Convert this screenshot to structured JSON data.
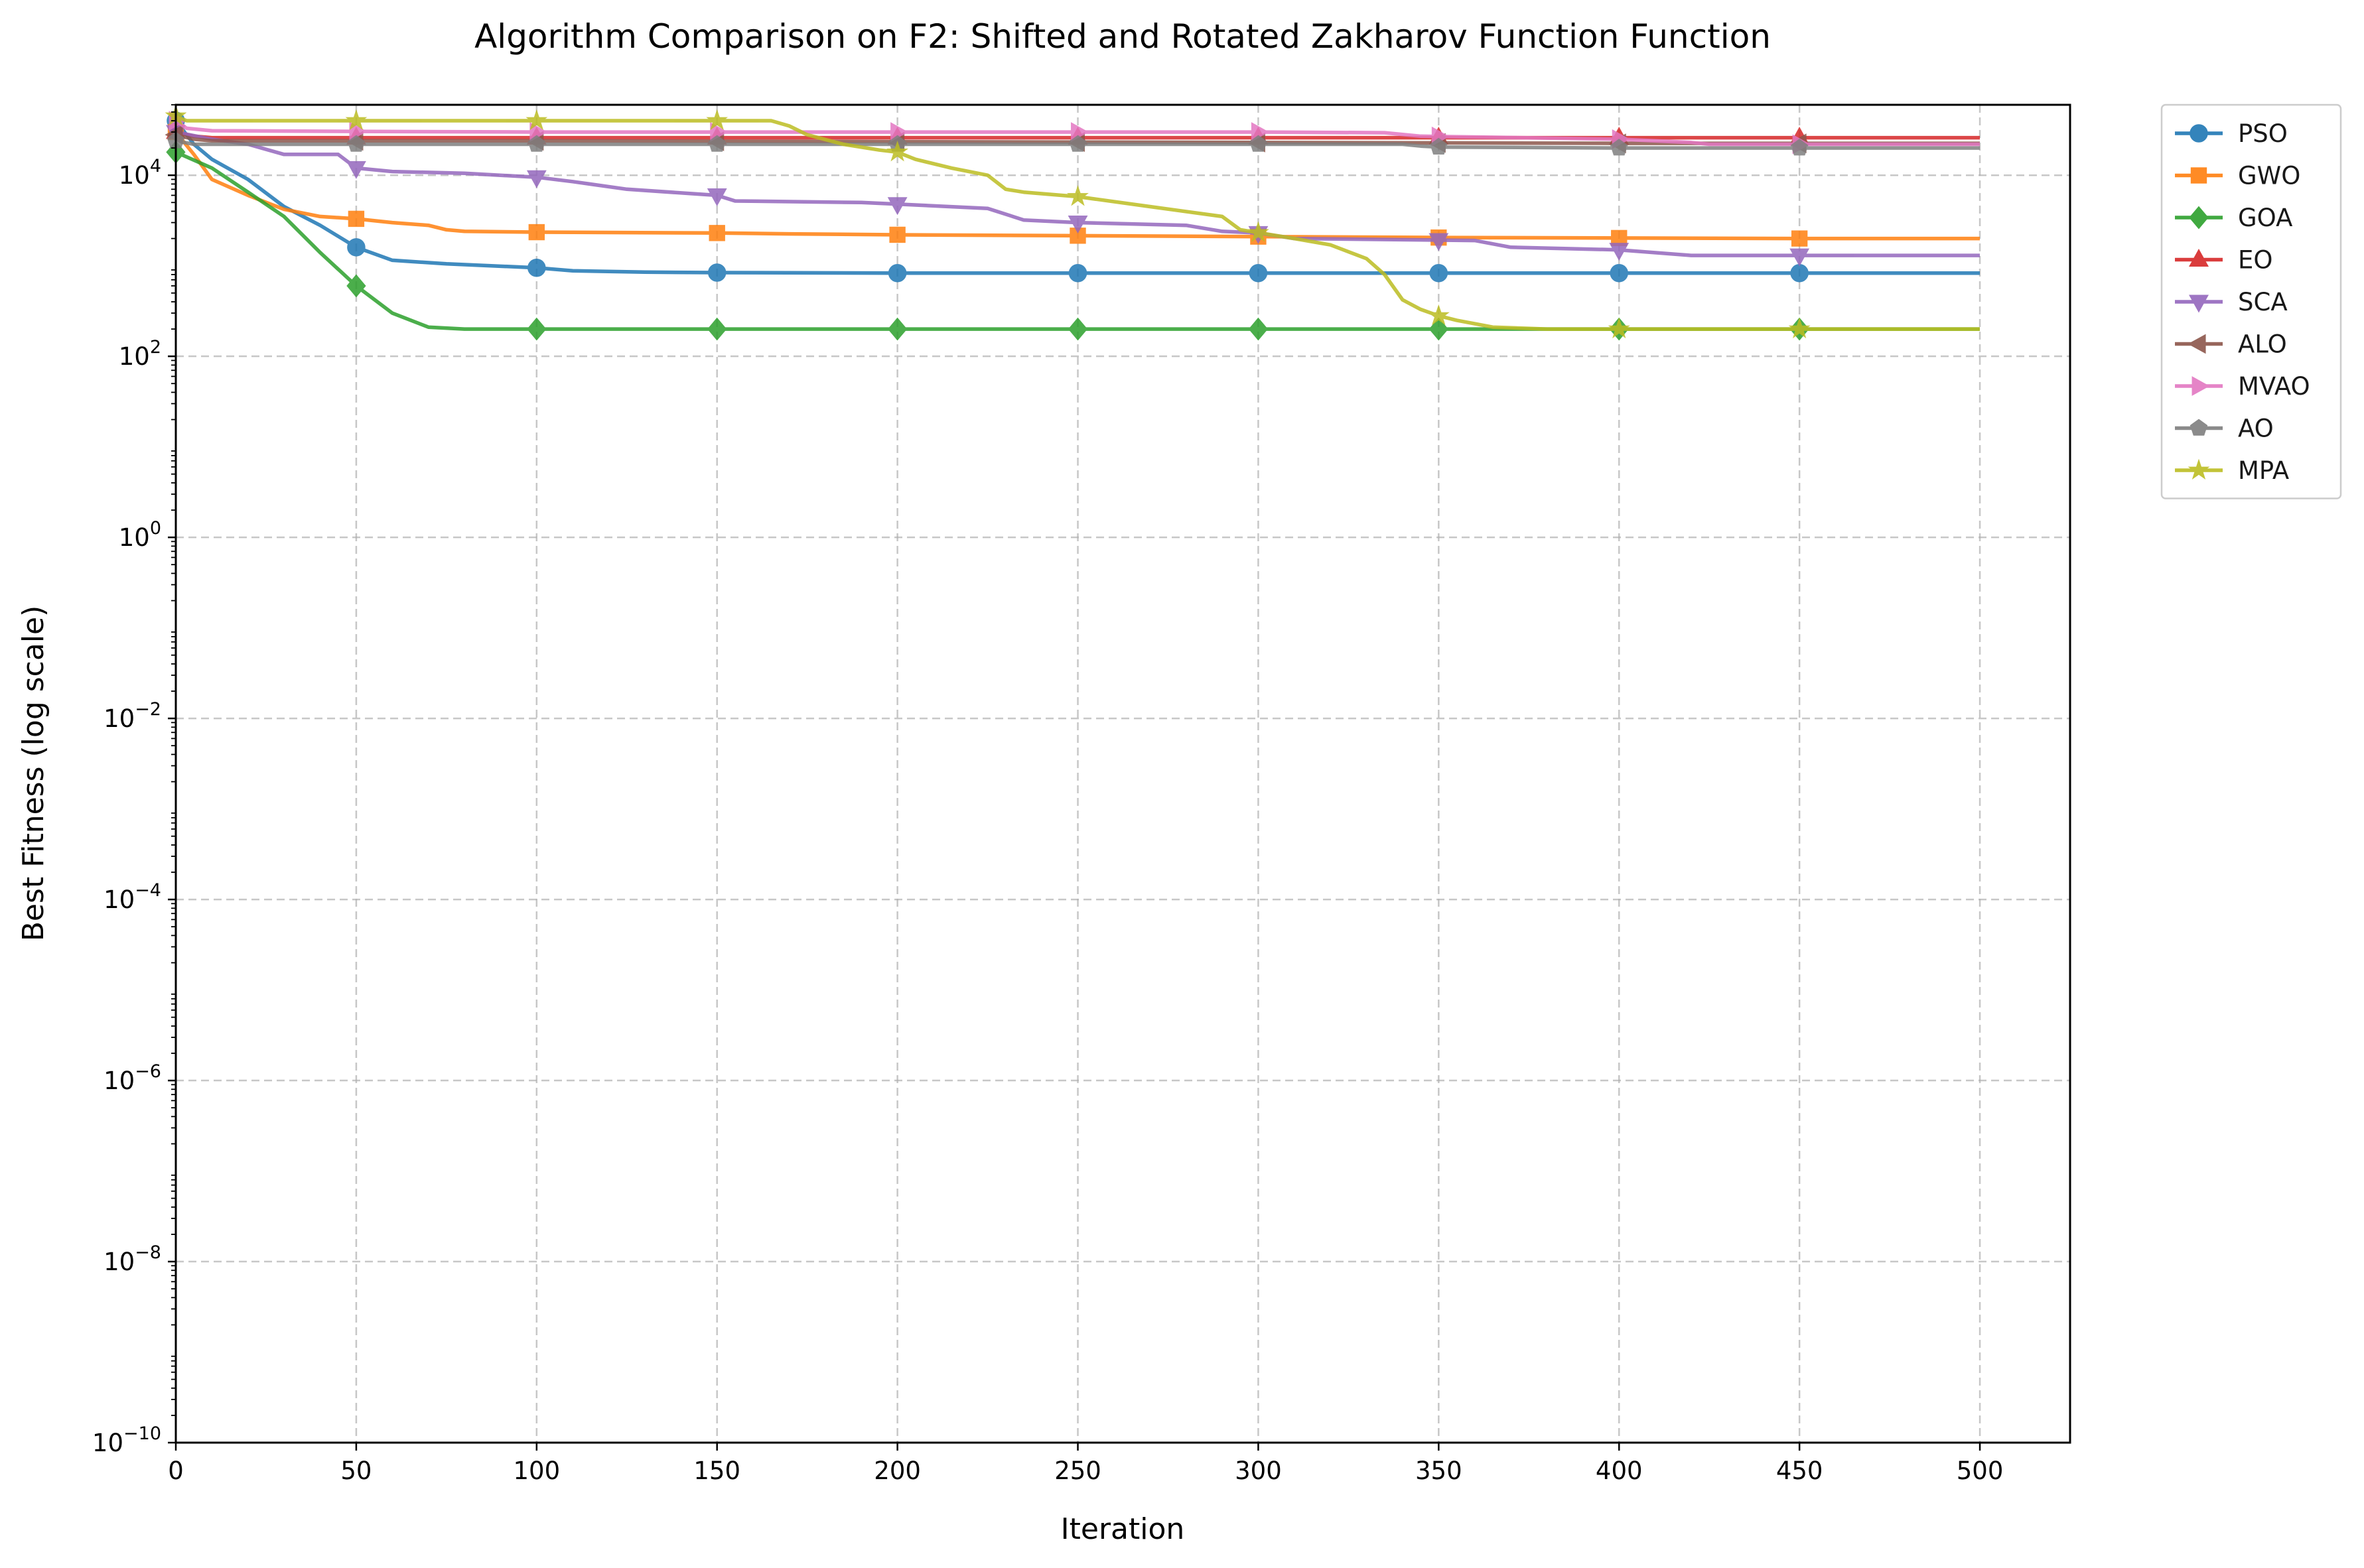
{
  "chart_data": {
    "type": "line",
    "title": "Algorithm Comparison on F2: Shifted and Rotated Zakharov Function Function",
    "xlabel": "Iteration",
    "ylabel": "Best Fitness (log scale)",
    "xlim": [
      0,
      525
    ],
    "ylim": [
      1e-10,
      60000
    ],
    "yscale": "log",
    "grid": true,
    "legend_position": "outside-top-right",
    "xticks": [
      "0",
      "50",
      "100",
      "150",
      "200",
      "250",
      "300",
      "350",
      "400",
      "450",
      "500"
    ],
    "yticks": [
      {
        "base": "10",
        "exp": "4"
      },
      {
        "base": "10",
        "exp": "2"
      },
      {
        "base": "10",
        "exp": "0"
      },
      {
        "base": "10",
        "exp": "−2"
      },
      {
        "base": "10",
        "exp": "−4"
      },
      {
        "base": "10",
        "exp": "−6"
      },
      {
        "base": "10",
        "exp": "−8"
      },
      {
        "base": "10",
        "exp": "−10"
      }
    ],
    "series": [
      {
        "name": "PSO",
        "color": "#1f77b4",
        "marker": "circle",
        "x": [
          0,
          5,
          10,
          20,
          30,
          40,
          50,
          60,
          75,
          100,
          110,
          130,
          150,
          200,
          300,
          400,
          500
        ],
        "y": [
          40000,
          22000,
          15000,
          9000,
          4500,
          2800,
          1600,
          1150,
          1050,
          950,
          880,
          850,
          840,
          830,
          830,
          830,
          830
        ]
      },
      {
        "name": "GWO",
        "color": "#ff7f0e",
        "marker": "square",
        "x": [
          0,
          5,
          10,
          20,
          30,
          40,
          50,
          60,
          70,
          75,
          80,
          100,
          150,
          170,
          200,
          300,
          350,
          450,
          500
        ],
        "y": [
          30000,
          17000,
          9000,
          6000,
          4200,
          3500,
          3300,
          3000,
          2800,
          2500,
          2400,
          2350,
          2300,
          2250,
          2200,
          2100,
          2050,
          2000,
          2000
        ]
      },
      {
        "name": "GOA",
        "color": "#2ca02c",
        "marker": "diamond",
        "x": [
          0,
          10,
          20,
          30,
          40,
          50,
          60,
          70,
          80,
          100,
          150,
          300,
          450,
          500
        ],
        "y": [
          18000,
          12000,
          6500,
          3500,
          1400,
          600,
          300,
          210,
          200,
          200,
          200,
          200,
          200,
          200
        ]
      },
      {
        "name": "EO",
        "color": "#d62728",
        "marker": "triangle-up",
        "x": [
          0,
          5,
          10,
          50,
          100,
          150,
          200,
          250,
          300,
          350,
          400,
          450,
          500
        ],
        "y": [
          30000,
          27000,
          26000,
          26000,
          26000,
          26000,
          26000,
          26000,
          26000,
          26000,
          26000,
          26000,
          26000
        ]
      },
      {
        "name": "SCA",
        "color": "#9467bd",
        "marker": "triangle-down",
        "x": [
          0,
          10,
          20,
          30,
          45,
          50,
          60,
          80,
          100,
          110,
          125,
          150,
          155,
          190,
          200,
          225,
          235,
          250,
          280,
          290,
          300,
          310,
          360,
          370,
          400,
          420,
          450,
          500
        ],
        "y": [
          30000,
          25000,
          22000,
          17000,
          17000,
          12000,
          11000,
          10500,
          9500,
          8500,
          7000,
          6000,
          5200,
          5000,
          4800,
          4300,
          3200,
          3000,
          2800,
          2400,
          2300,
          2000,
          1900,
          1600,
          1500,
          1300,
          1300,
          1300
        ]
      },
      {
        "name": "ALO",
        "color": "#8c564b",
        "marker": "triangle-left",
        "x": [
          0,
          5,
          10,
          50,
          100,
          200,
          300,
          400,
          450,
          500
        ],
        "y": [
          28000,
          25000,
          24000,
          24000,
          24000,
          23500,
          23000,
          22500,
          22500,
          22500
        ]
      },
      {
        "name": "MVAO",
        "color": "#e377c2",
        "marker": "triangle-right",
        "x": [
          0,
          3,
          10,
          50,
          100,
          150,
          200,
          250,
          300,
          335,
          345,
          400,
          420,
          425,
          450,
          500
        ],
        "y": [
          40000,
          33000,
          31000,
          30500,
          30000,
          30000,
          30000,
          30000,
          30000,
          29500,
          27000,
          25000,
          23000,
          22000,
          22000,
          22000
        ]
      },
      {
        "name": "AO",
        "color": "#7f7f7f",
        "marker": "pentagon",
        "x": [
          0,
          5,
          50,
          100,
          150,
          200,
          250,
          300,
          340,
          345,
          350,
          400,
          450,
          500
        ],
        "y": [
          24000,
          22000,
          22000,
          22000,
          22000,
          22000,
          22000,
          22000,
          22000,
          21000,
          20500,
          20000,
          20000,
          20000
        ]
      },
      {
        "name": "MPA",
        "color": "#bcbd22",
        "marker": "star",
        "x": [
          0,
          3,
          50,
          100,
          150,
          165,
          170,
          175,
          185,
          195,
          200,
          205,
          215,
          225,
          230,
          235,
          250,
          270,
          290,
          295,
          310,
          320,
          330,
          335,
          340,
          345,
          350,
          355,
          365,
          380,
          400,
          450,
          500
        ],
        "y": [
          45000,
          40000,
          40000,
          40000,
          40000,
          40000,
          35000,
          28000,
          22000,
          19000,
          18000,
          15000,
          12000,
          10000,
          7000,
          6500,
          5800,
          4500,
          3500,
          2500,
          2000,
          1700,
          1200,
          800,
          420,
          330,
          280,
          250,
          210,
          200,
          200,
          200,
          200
        ]
      }
    ]
  }
}
